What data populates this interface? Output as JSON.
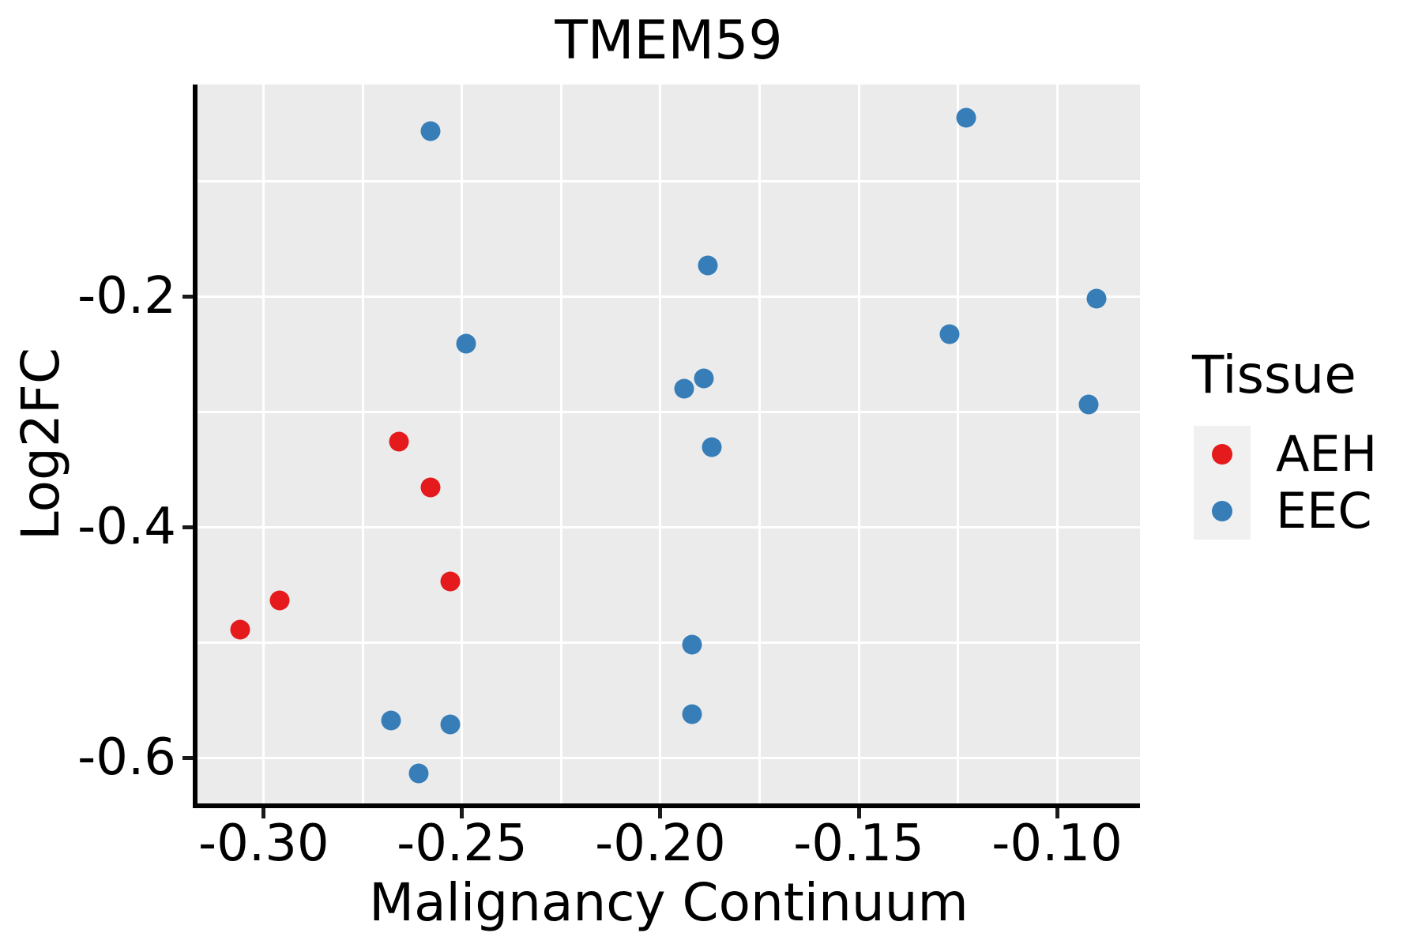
{
  "title": "TMEM59",
  "chart_data": {
    "type": "scatter",
    "title": "TMEM59",
    "xlabel": "Malignancy Continuum",
    "ylabel": "Log2FC",
    "x_domain": [
      -0.3167,
      -0.0791
    ],
    "y_domain": [
      -0.6397,
      -0.0164
    ],
    "x_ticks": {
      "values": [
        -0.3,
        -0.25,
        -0.2,
        -0.15,
        -0.1
      ],
      "labels": [
        "-0.30",
        "-0.25",
        "-0.20",
        "-0.15",
        "-0.10"
      ]
    },
    "y_ticks": {
      "values": [
        -0.2,
        -0.4,
        -0.6
      ],
      "labels": [
        "-0.2",
        "-0.4",
        "-0.6"
      ]
    },
    "x_minor_gridlines": [
      -0.275,
      -0.225,
      -0.175,
      -0.125
    ],
    "y_minor_gridlines": [
      -0.1,
      -0.3,
      -0.5
    ],
    "grid": "on",
    "legend_position": "right",
    "series": [
      {
        "name": "AEH",
        "color": "#E41A1C",
        "points": [
          [
            -0.266,
            -0.326
          ],
          [
            -0.258,
            -0.366
          ],
          [
            -0.253,
            -0.447
          ],
          [
            -0.296,
            -0.464
          ],
          [
            -0.306,
            -0.489
          ]
        ]
      },
      {
        "name": "EEC",
        "color": "#377EB8",
        "points": [
          [
            -0.258,
            -0.057
          ],
          [
            -0.123,
            -0.045
          ],
          [
            -0.188,
            -0.173
          ],
          [
            -0.09,
            -0.202
          ],
          [
            -0.249,
            -0.241
          ],
          [
            -0.127,
            -0.233
          ],
          [
            -0.189,
            -0.271
          ],
          [
            -0.194,
            -0.28
          ],
          [
            -0.092,
            -0.294
          ],
          [
            -0.187,
            -0.331
          ],
          [
            -0.192,
            -0.502
          ],
          [
            -0.192,
            -0.562
          ],
          [
            -0.268,
            -0.568
          ],
          [
            -0.253,
            -0.571
          ],
          [
            -0.261,
            -0.614
          ]
        ]
      }
    ]
  },
  "legend": {
    "title": "Tissue",
    "items": [
      {
        "label": "AEH",
        "color": "#E41A1C"
      },
      {
        "label": "EEC",
        "color": "#377EB8"
      }
    ]
  },
  "colors": {
    "panel_background": "#EBEBEB",
    "gridline": "#FFFFFF",
    "axis_line": "#000000",
    "legend_key_background": "#F0F0F0",
    "aeh": "#E41A1C",
    "eec": "#377EB8"
  }
}
